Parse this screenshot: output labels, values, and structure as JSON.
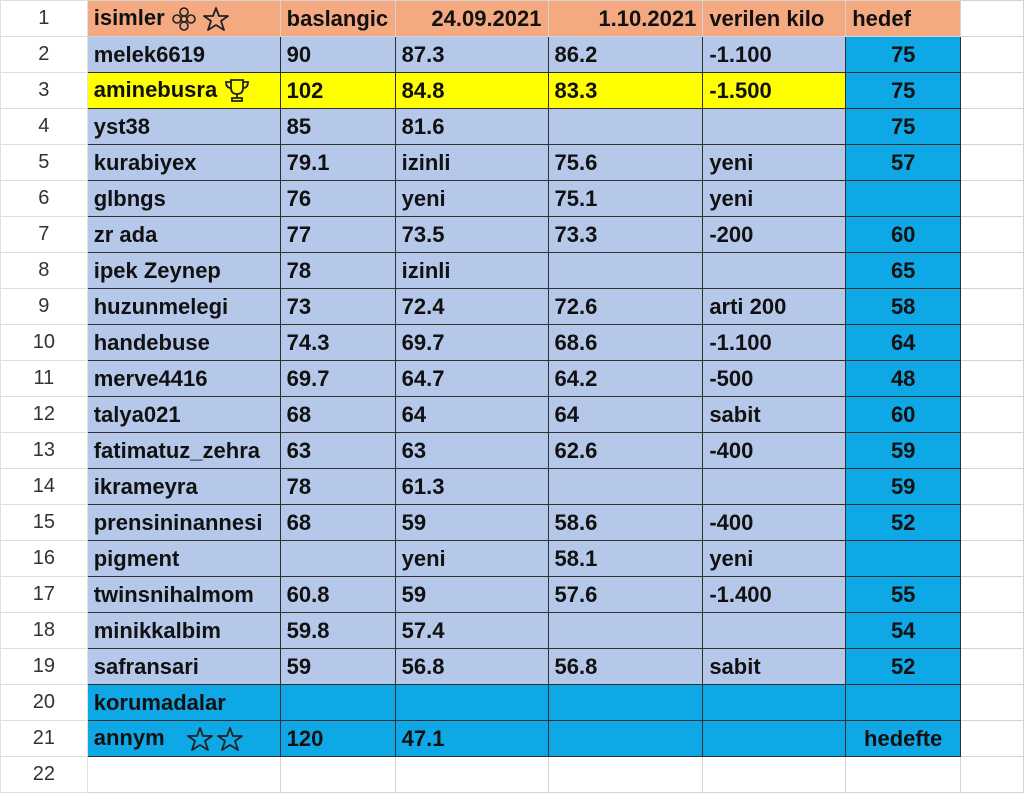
{
  "spreadsheet": {
    "headers": {
      "row_number": "1",
      "name": "isimler",
      "start": "baslangic",
      "date1": "24.09.2021",
      "date2": "1.10.2021",
      "lost": "verilen kilo",
      "goal": "hedef",
      "name_icons": [
        "flower-icon",
        "star-icon"
      ]
    },
    "rows": [
      {
        "row_number": "2",
        "name": "melek6619",
        "start": "90",
        "date1": "87.3",
        "date2": "86.2",
        "lost": "-1.100",
        "goal": "75"
      },
      {
        "row_number": "3",
        "name": "aminebusra",
        "start": "102",
        "date1": "84.8",
        "date2": "83.3",
        "lost": "-1.500",
        "goal": "75",
        "icon": "trophy-icon",
        "highlight": "#ffff00"
      },
      {
        "row_number": "4",
        "name": "yst38",
        "start": "85",
        "date1": "81.6",
        "date2": "",
        "lost": "",
        "goal": "75"
      },
      {
        "row_number": "5",
        "name": "kurabiyex",
        "start": "79.1",
        "date1": "izinli",
        "date2": "75.6",
        "lost": "yeni",
        "goal": "57"
      },
      {
        "row_number": "6",
        "name": "glbngs",
        "start": "76",
        "date1": "yeni",
        "date2": "75.1",
        "lost": "yeni",
        "goal": ""
      },
      {
        "row_number": "7",
        "name": "zr ada",
        "start": "77",
        "date1": "73.5",
        "date2": "73.3",
        "lost": "-200",
        "goal": "60"
      },
      {
        "row_number": "8",
        "name": "ipek Zeynep",
        "start": "78",
        "date1": "izinli",
        "date2": "",
        "lost": "",
        "goal": "65"
      },
      {
        "row_number": "9",
        "name": "huzunmelegi",
        "start": "73",
        "date1": "72.4",
        "date2": "72.6",
        "lost": "arti 200",
        "goal": "58"
      },
      {
        "row_number": "10",
        "name": "handebuse",
        "start": "74.3",
        "date1": "69.7",
        "date2": "68.6",
        "lost": "-1.100",
        "goal": "64"
      },
      {
        "row_number": "11",
        "name": "merve4416",
        "start": "69.7",
        "date1": "64.7",
        "date2": "64.2",
        "lost": "-500",
        "goal": "48"
      },
      {
        "row_number": "12",
        "name": "talya021",
        "start": "68",
        "date1": "64",
        "date2": "64",
        "lost": "sabit",
        "goal": "60"
      },
      {
        "row_number": "13",
        "name": "fatimatuz_zehra",
        "start": "63",
        "date1": "63",
        "date2": "62.6",
        "lost": "-400",
        "goal": "59"
      },
      {
        "row_number": "14",
        "name": "ikrameyra",
        "start": "78",
        "date1": "61.3",
        "date2": "",
        "lost": "",
        "goal": "59"
      },
      {
        "row_number": "15",
        "name": "prensininannesi",
        "start": "68",
        "date1": "59",
        "date2": "58.6",
        "lost": "-400",
        "goal": "52"
      },
      {
        "row_number": "16",
        "name": "pigment",
        "start": "",
        "date1": "yeni",
        "date2": "58.1",
        "lost": "yeni",
        "goal": ""
      },
      {
        "row_number": "17",
        "name": "twinsnihalmom",
        "start": "60.8",
        "date1": "59",
        "date2": "57.6",
        "lost": "-1.400",
        "goal": "55"
      },
      {
        "row_number": "18",
        "name": "minikkalbim",
        "start": "59.8",
        "date1": "57.4",
        "date2": "",
        "lost": "",
        "goal": "54"
      },
      {
        "row_number": "19",
        "name": "safransari",
        "start": "59",
        "date1": "56.8",
        "date2": "56.8",
        "lost": "sabit",
        "goal": "52"
      },
      {
        "row_number": "20",
        "name": "korumadalar",
        "start": "",
        "date1": "",
        "date2": "",
        "lost": "",
        "goal": "",
        "fill": "#0fa8e6"
      },
      {
        "row_number": "21",
        "name": "annym",
        "start": "120",
        "date1": "47.1",
        "date2": "",
        "lost": "",
        "goal": "hedefte",
        "icons": [
          "star-icon",
          "star-icon"
        ],
        "fill": "#0fa8e6"
      },
      {
        "row_number": "22",
        "name": "",
        "start": "",
        "date1": "",
        "date2": "",
        "lost": "",
        "goal": ""
      }
    ]
  },
  "colors": {
    "header_fill": "#f4a981",
    "row_fill": "#b6c8ea",
    "goal_fill": "#0fa8e6",
    "highlight_fill": "#ffff00",
    "selected_column_marker": "#1e7b45"
  }
}
